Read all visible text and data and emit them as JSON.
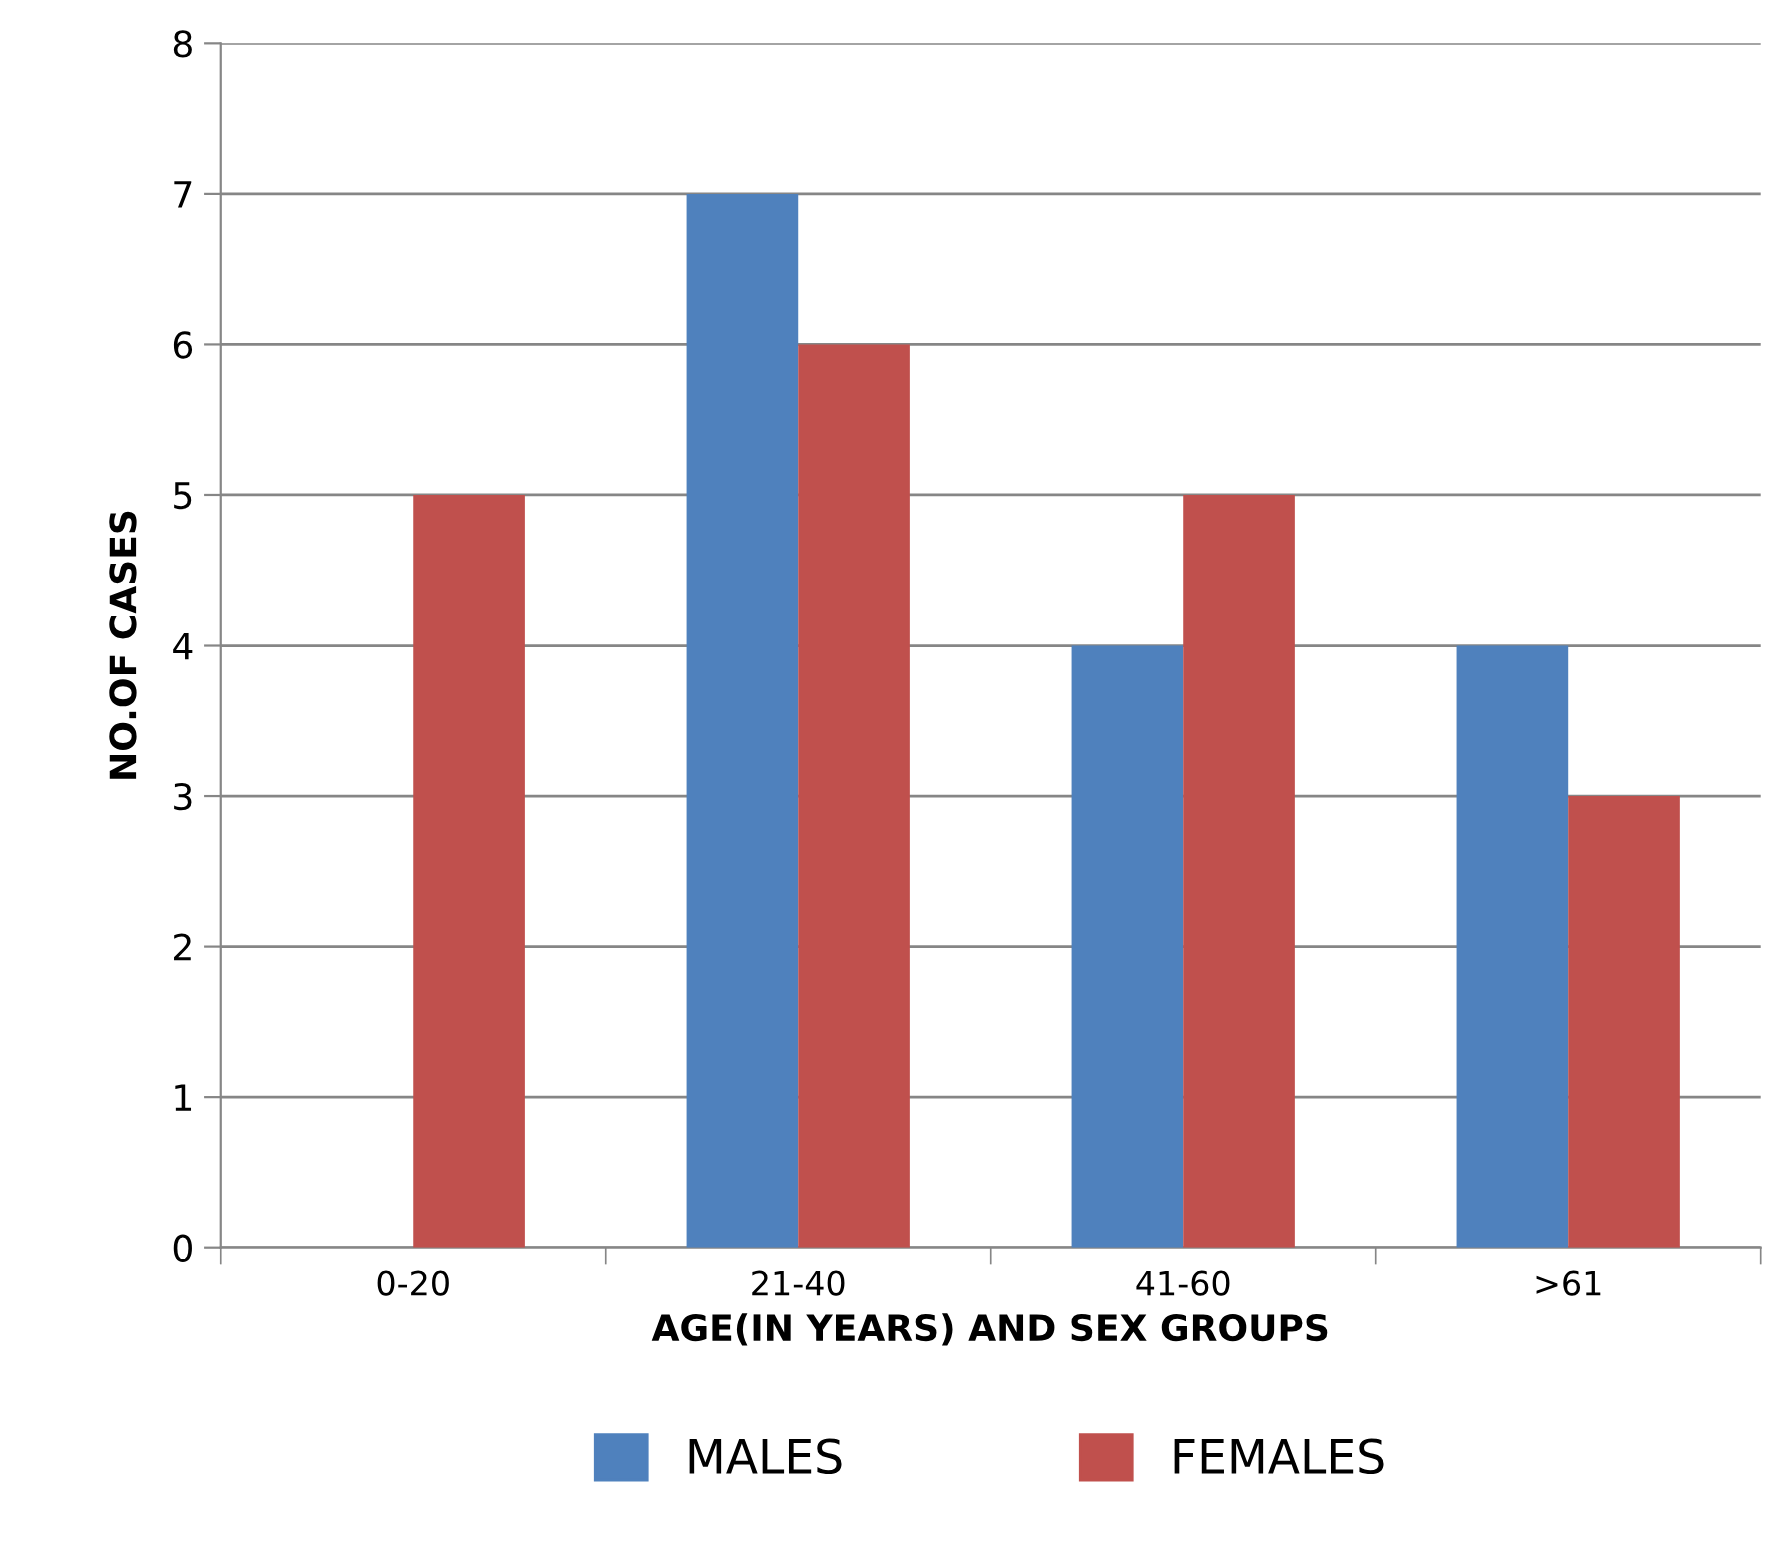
{
  "chart_data": {
    "type": "bar",
    "xlabel": "AGE(IN YEARS) AND SEX GROUPS",
    "ylabel": "NO.OF CASES",
    "categories": [
      "0-20",
      "21-40",
      "41-60",
      ">61"
    ],
    "series": [
      {
        "name": "MALES",
        "color": "#4f81bd",
        "values": [
          0,
          7,
          4,
          4
        ]
      },
      {
        "name": "FEMALES",
        "color": "#c0504d",
        "values": [
          5,
          6,
          5,
          3
        ]
      }
    ],
    "ylim": [
      0,
      8
    ],
    "yticks": [
      0,
      1,
      2,
      3,
      4,
      5,
      6,
      7,
      8
    ],
    "grid": "y",
    "legend": "bottom"
  }
}
